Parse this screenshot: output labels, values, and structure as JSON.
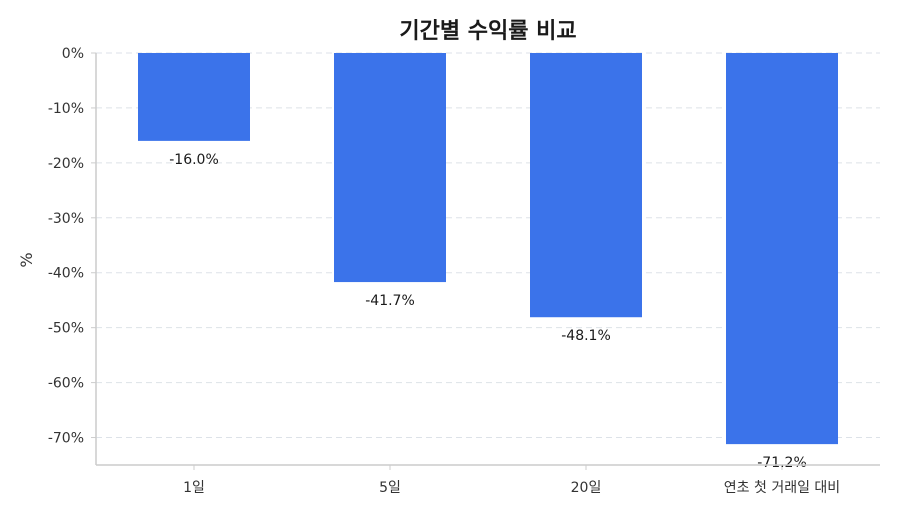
{
  "chart_data": {
    "type": "bar",
    "title": "기간별 수익률 비교",
    "xlabel": "",
    "ylabel": "%",
    "categories": [
      "1일",
      "5일",
      "20일",
      "연초 첫 거래일 대비"
    ],
    "values": [
      -16.0,
      -41.7,
      -48.1,
      -71.2
    ],
    "data_labels": [
      "-16.0%",
      "-41.7%",
      "-48.1%",
      "-71.2%"
    ],
    "ylim": [
      -75,
      0
    ],
    "yticks": [
      0,
      -10,
      -20,
      -30,
      -40,
      -50,
      -60,
      -70
    ],
    "ytick_labels": [
      "0%",
      "-10%",
      "-20%",
      "-30%",
      "-40%",
      "-50%",
      "-60%",
      "-70%"
    ],
    "grid": true,
    "bar_color": "#3b73ea"
  }
}
